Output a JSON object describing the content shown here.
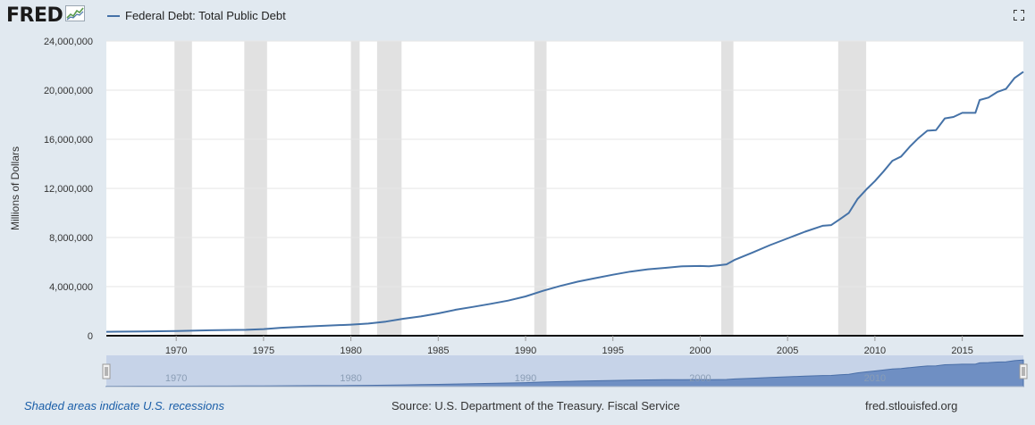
{
  "header": {
    "logo_text": "FRED",
    "logo_icon": "fred-chart-icon",
    "series_title": "Federal Debt: Total Public Debt",
    "expand_icon": "fullscreen-icon"
  },
  "footer": {
    "recession_note": "Shaded areas indicate U.S. recessions",
    "source": "Source: U.S. Department of the Treasury. Fiscal Service",
    "url": "fred.stlouisfed.org"
  },
  "colors": {
    "background": "#e1e9f0",
    "series_line": "#4572a7",
    "recession_shade": "#e1e1e1",
    "navigator_fill": "#6f8fc3",
    "navigator_bg": "#c6d3e8"
  },
  "chart_data": {
    "type": "line",
    "title": "Federal Debt: Total Public Debt",
    "xlabel": "",
    "ylabel": "Millions of Dollars",
    "x_ticks": [
      "1970",
      "1975",
      "1980",
      "1985",
      "1990",
      "1995",
      "2000",
      "2005",
      "2010",
      "2015"
    ],
    "y_ticks": [
      "0",
      "4,000,000",
      "8,000,000",
      "12,000,000",
      "16,000,000",
      "20,000,000",
      "24,000,000"
    ],
    "xlim": [
      1966.0,
      2018.5
    ],
    "ylim": [
      0,
      24000000
    ],
    "grid": true,
    "recessions": [
      [
        1969.9,
        1970.9
      ],
      [
        1973.9,
        1975.2
      ],
      [
        1980.0,
        1980.5
      ],
      [
        1981.5,
        1982.9
      ],
      [
        1990.5,
        1991.2
      ],
      [
        2001.2,
        2001.9
      ],
      [
        2007.9,
        2009.5
      ]
    ],
    "navigator_ticks": [
      "1970",
      "1980",
      "1990",
      "2000",
      "2010"
    ],
    "series": [
      {
        "name": "Federal Debt: Total Public Debt",
        "x": [
          1966.0,
          1968.0,
          1970.0,
          1972.0,
          1974.0,
          1975.0,
          1976.0,
          1978.0,
          1980.0,
          1981.0,
          1982.0,
          1983.0,
          1984.0,
          1985.0,
          1986.0,
          1987.0,
          1988.0,
          1989.0,
          1990.0,
          1991.0,
          1992.0,
          1993.0,
          1994.0,
          1995.0,
          1996.0,
          1997.0,
          1998.0,
          1999.0,
          2000.0,
          2000.5,
          2001.0,
          2001.5,
          2002.0,
          2003.0,
          2004.0,
          2005.0,
          2006.0,
          2007.0,
          2007.5,
          2008.0,
          2008.5,
          2009.0,
          2009.5,
          2010.0,
          2010.5,
          2011.0,
          2011.5,
          2012.0,
          2012.5,
          2013.0,
          2013.5,
          2014.0,
          2014.5,
          2015.0,
          2015.75,
          2016.0,
          2016.5,
          2017.0,
          2017.5,
          2018.0,
          2018.5
        ],
        "y": [
          320000,
          350000,
          380000,
          440000,
          480000,
          540000,
          650000,
          780000,
          900000,
          990000,
          1150000,
          1380000,
          1570000,
          1820000,
          2120000,
          2350000,
          2600000,
          2860000,
          3200000,
          3660000,
          4060000,
          4410000,
          4690000,
          4970000,
          5220000,
          5410000,
          5530000,
          5660000,
          5680000,
          5660000,
          5730000,
          5810000,
          6200000,
          6780000,
          7380000,
          7930000,
          8470000,
          8950000,
          9010000,
          9500000,
          9990000,
          11120000,
          11900000,
          12600000,
          13400000,
          14250000,
          14600000,
          15400000,
          16100000,
          16700000,
          16750000,
          17700000,
          17820000,
          18150000,
          18150000,
          19200000,
          19400000,
          19850000,
          20100000,
          21000000,
          21500000
        ]
      }
    ]
  }
}
